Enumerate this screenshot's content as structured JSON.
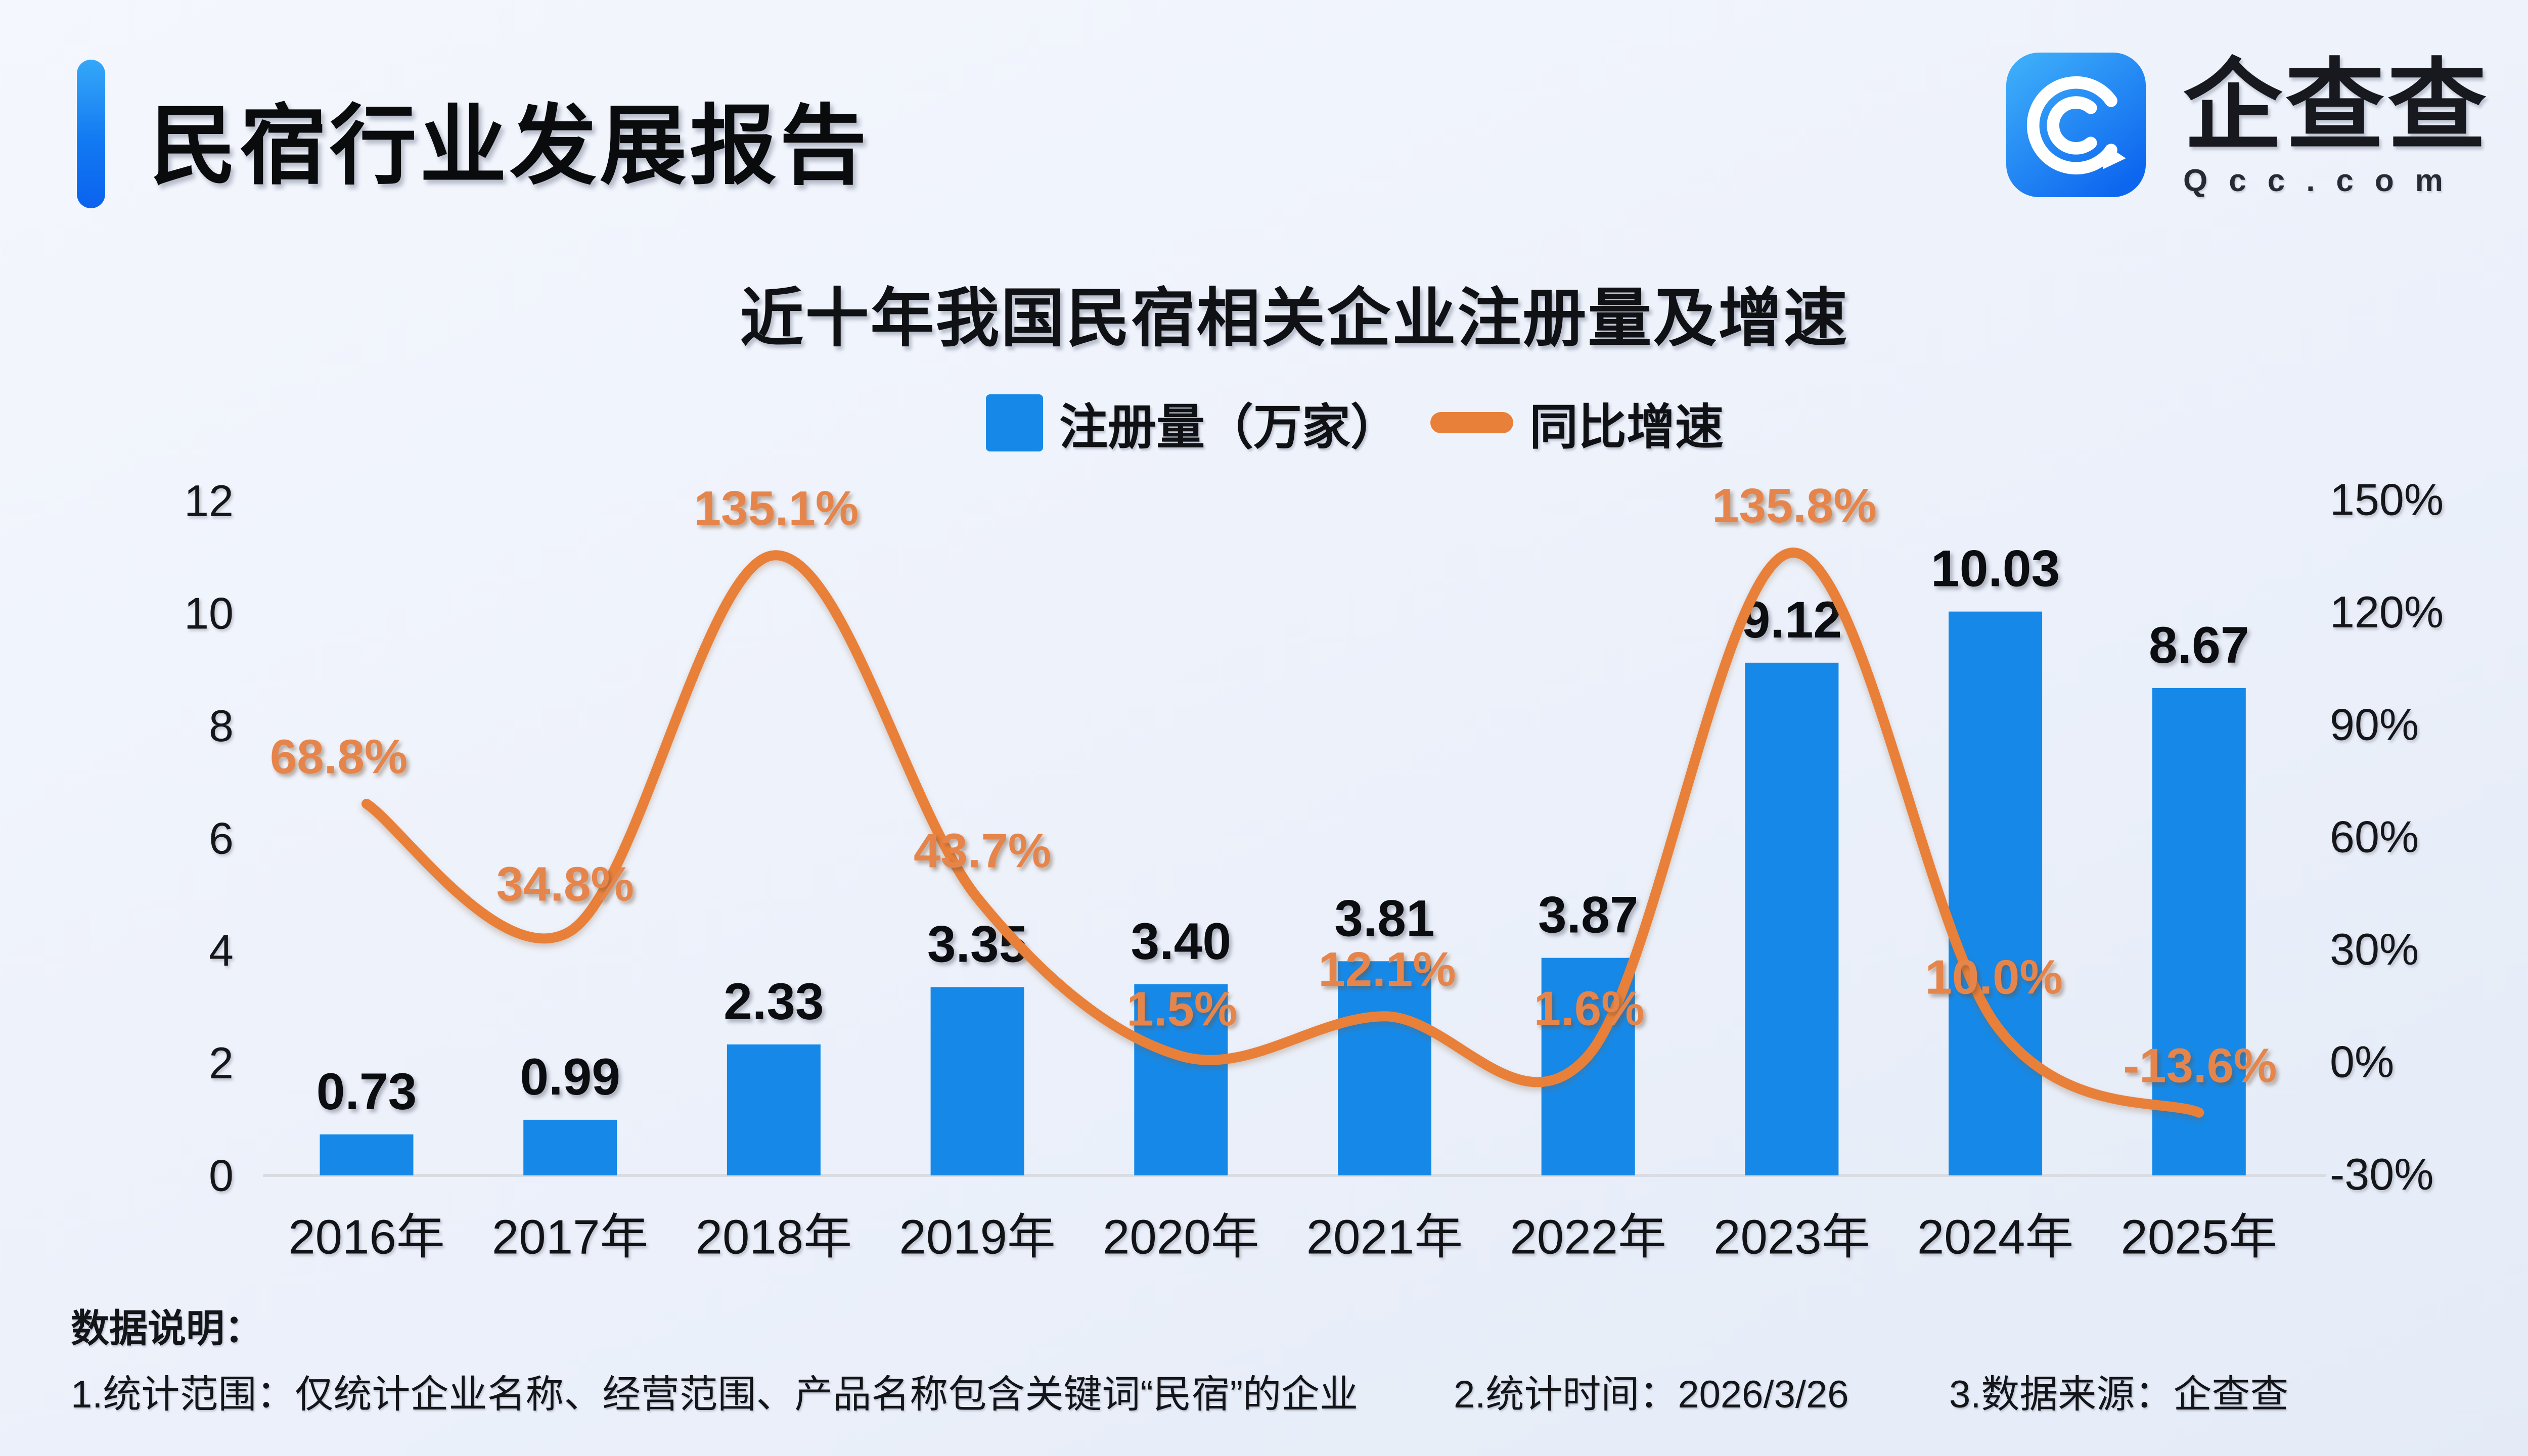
{
  "header": {
    "title": "民宿行业发展报告"
  },
  "logo": {
    "brand": "企查查",
    "domain": "Qcc.com"
  },
  "chart_data": {
    "type": "bar+line",
    "title": "近十年我国民宿相关企业注册量及增速",
    "categories": [
      "2016年",
      "2017年",
      "2018年",
      "2019年",
      "2020年",
      "2021年",
      "2022年",
      "2023年",
      "2024年",
      "2025年"
    ],
    "series": [
      {
        "name": "注册量（万家）",
        "type": "bar",
        "axis": "left",
        "color": "#1689E8",
        "values": [
          0.73,
          0.99,
          2.33,
          3.35,
          3.4,
          3.81,
          3.87,
          9.12,
          10.03,
          8.67
        ],
        "labels": [
          "0.73",
          "0.99",
          "2.33",
          "3.35",
          "3.40",
          "3.81",
          "3.87",
          "9.12",
          "10.03",
          "8.67"
        ]
      },
      {
        "name": "同比增速",
        "type": "line",
        "axis": "right",
        "color": "#E9803A",
        "values": [
          68.8,
          34.8,
          135.1,
          43.7,
          1.5,
          12.1,
          1.6,
          135.8,
          10.0,
          -13.6
        ],
        "labels": [
          "68.8%",
          "34.8%",
          "135.1%",
          "43.7%",
          "1.5%",
          "12.1%",
          "1.6%",
          "135.8%",
          "10.0%",
          "-13.6%"
        ]
      }
    ],
    "left_axis": {
      "ticks": [
        "12",
        "10",
        "8",
        "6",
        "4",
        "2",
        "0"
      ],
      "range": [
        0,
        12
      ]
    },
    "right_axis": {
      "ticks": [
        "150%",
        "120%",
        "90%",
        "60%",
        "30%",
        "0%",
        "-30%"
      ],
      "range": [
        -30,
        150
      ]
    },
    "grid": false,
    "legend_position": "top"
  },
  "footer": {
    "heading": "数据说明：",
    "notes": [
      "1.统计范围：仅统计企业名称、经营范围、产品名称包含关键词“民宿”的企业",
      "2.统计时间：2026/3/26",
      "3.数据来源：企查查"
    ]
  }
}
